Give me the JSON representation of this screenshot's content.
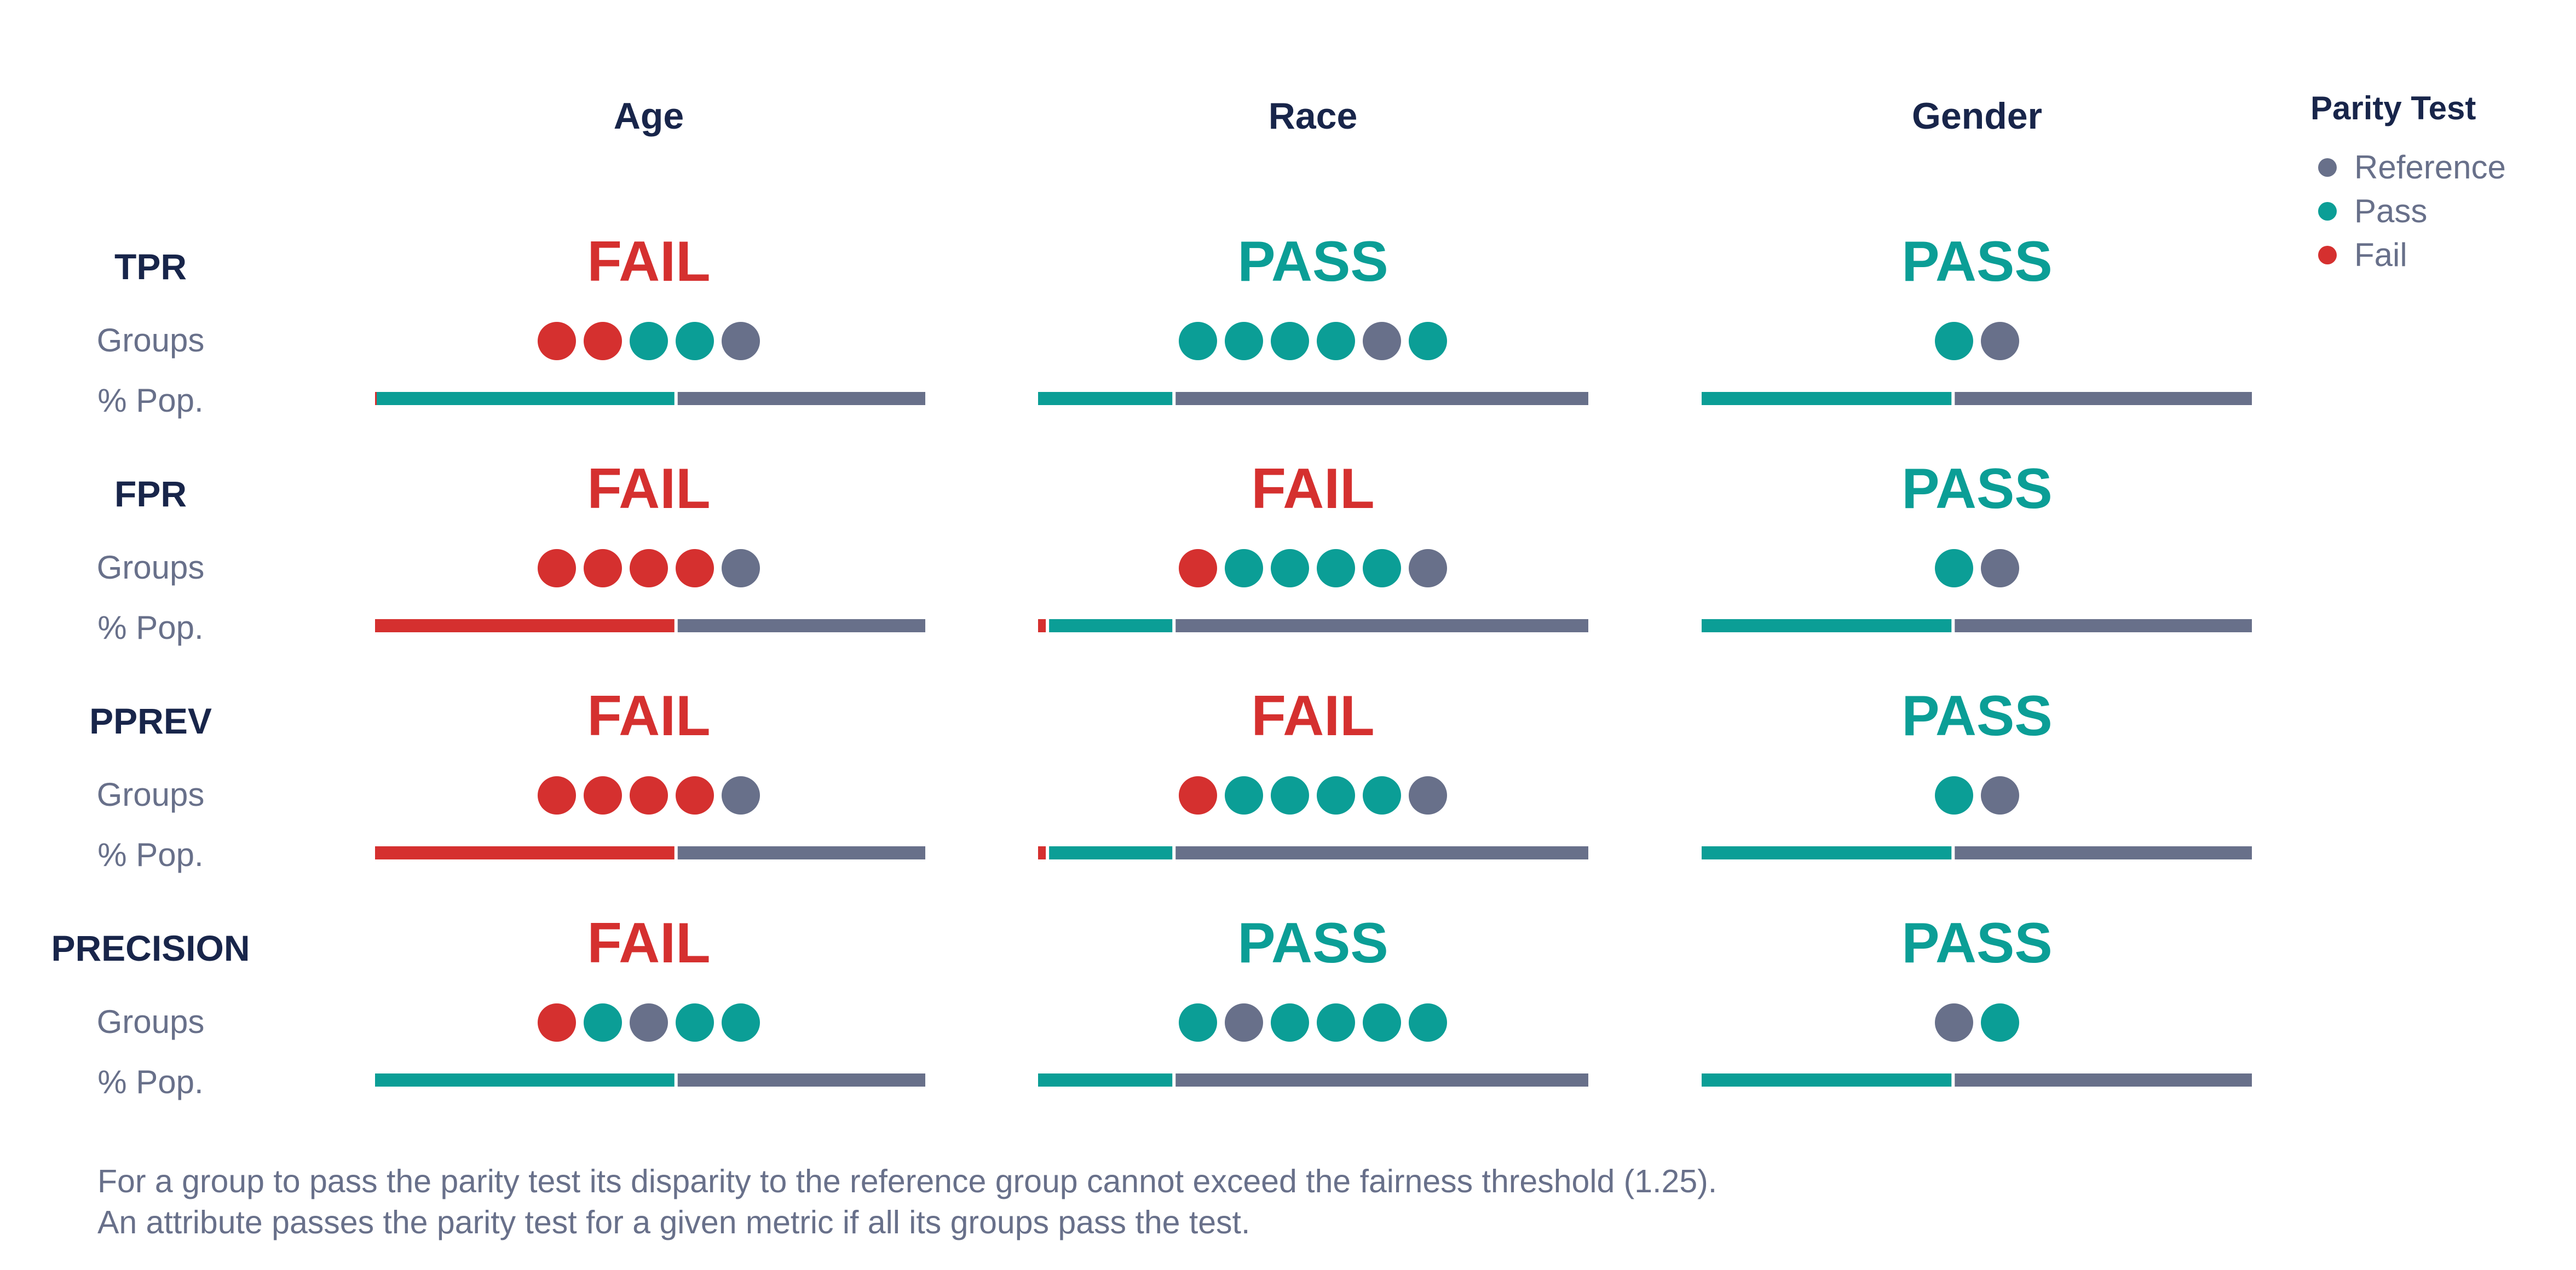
{
  "colors": {
    "reference": "#68708a",
    "pass": "#0b9e96",
    "fail": "#d5302f",
    "title": "#18254a",
    "label": "#68708a"
  },
  "row_labels": {
    "groups": "Groups",
    "pop": "% Pop."
  },
  "legend": {
    "title": "Parity Test",
    "items": [
      {
        "label": "Reference",
        "status": "reference"
      },
      {
        "label": "Pass",
        "status": "pass"
      },
      {
        "label": "Fail",
        "status": "fail"
      }
    ]
  },
  "footnote": [
    "For a group to pass the parity test its disparity to the reference group cannot exceed the fairness threshold (1.25).",
    "An attribute passes the parity test for a given metric if all its groups pass the test."
  ],
  "chart_data": {
    "type": "table",
    "attributes": [
      "Age",
      "Race",
      "Gender"
    ],
    "metrics": [
      "TPR",
      "FPR",
      "PPREV",
      "PRECISION"
    ],
    "cells": [
      [
        {
          "verdict": "FAIL",
          "groups": [
            "fail",
            "fail",
            "pass",
            "pass",
            "reference"
          ],
          "pop": [
            [
              "fail",
              0.3
            ],
            [
              "pass",
              54.7
            ],
            [
              "reference",
              45
            ]
          ]
        },
        {
          "verdict": "PASS",
          "groups": [
            "pass",
            "pass",
            "pass",
            "pass",
            "reference",
            "pass"
          ],
          "pop": [
            [
              "pass",
              25
            ],
            [
              "reference",
              75
            ]
          ]
        },
        {
          "verdict": "PASS",
          "groups": [
            "pass",
            "reference"
          ],
          "pop": [
            [
              "pass",
              46
            ],
            [
              "reference",
              54
            ]
          ]
        }
      ],
      [
        {
          "verdict": "FAIL",
          "groups": [
            "fail",
            "fail",
            "fail",
            "fail",
            "reference"
          ],
          "pop": [
            [
              "fail",
              55
            ],
            [
              "reference",
              45
            ]
          ]
        },
        {
          "verdict": "FAIL",
          "groups": [
            "fail",
            "pass",
            "pass",
            "pass",
            "pass",
            "reference"
          ],
          "pop": [
            [
              "fail",
              2
            ],
            [
              "pass",
              23
            ],
            [
              "reference",
              75
            ]
          ]
        },
        {
          "verdict": "PASS",
          "groups": [
            "pass",
            "reference"
          ],
          "pop": [
            [
              "pass",
              46
            ],
            [
              "reference",
              54
            ]
          ]
        }
      ],
      [
        {
          "verdict": "FAIL",
          "groups": [
            "fail",
            "fail",
            "fail",
            "fail",
            "reference"
          ],
          "pop": [
            [
              "fail",
              55
            ],
            [
              "reference",
              45
            ]
          ]
        },
        {
          "verdict": "FAIL",
          "groups": [
            "fail",
            "pass",
            "pass",
            "pass",
            "pass",
            "reference"
          ],
          "pop": [
            [
              "fail",
              2
            ],
            [
              "pass",
              23
            ],
            [
              "reference",
              75
            ]
          ]
        },
        {
          "verdict": "PASS",
          "groups": [
            "pass",
            "reference"
          ],
          "pop": [
            [
              "pass",
              46
            ],
            [
              "reference",
              54
            ]
          ]
        }
      ],
      [
        {
          "verdict": "FAIL",
          "groups": [
            "fail",
            "pass",
            "reference",
            "pass",
            "pass"
          ],
          "pop": [
            [
              "pass",
              55
            ],
            [
              "reference",
              45
            ]
          ]
        },
        {
          "verdict": "PASS",
          "groups": [
            "pass",
            "reference",
            "pass",
            "pass",
            "pass",
            "pass"
          ],
          "pop": [
            [
              "pass",
              25
            ],
            [
              "reference",
              75
            ]
          ]
        },
        {
          "verdict": "PASS",
          "groups": [
            "reference",
            "pass"
          ],
          "pop": [
            [
              "pass",
              46
            ],
            [
              "reference",
              54
            ]
          ]
        }
      ]
    ]
  }
}
